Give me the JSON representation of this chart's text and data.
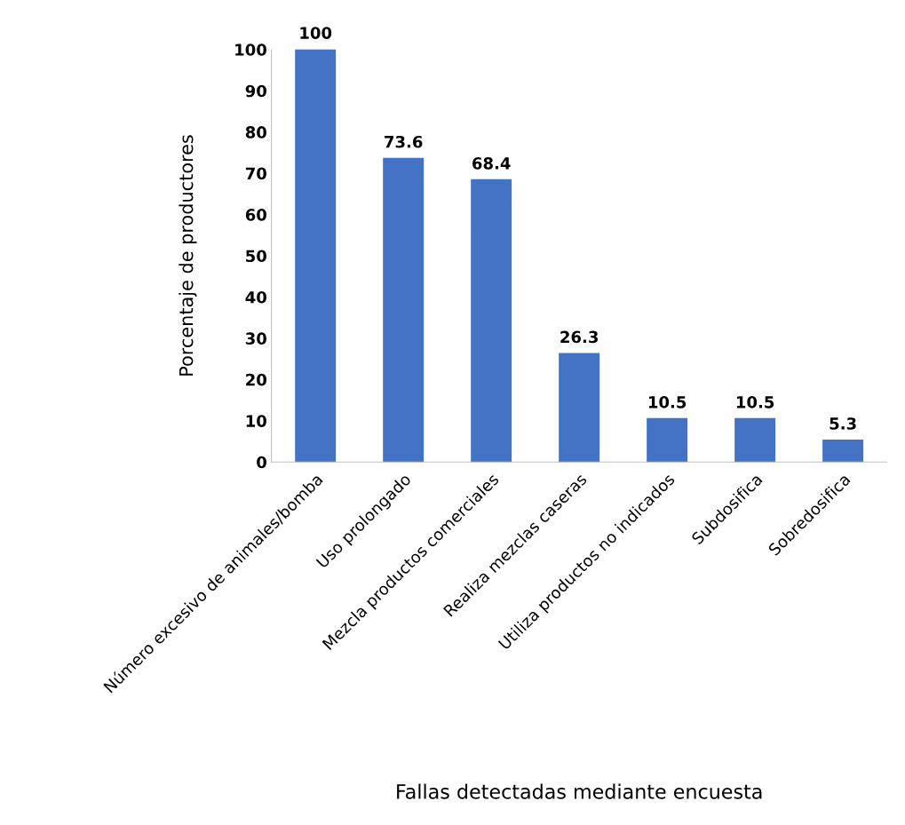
{
  "chart_data": {
    "type": "bar",
    "xlabel": "Fallas detectadas mediante encuesta",
    "ylabel": "Porcentaje de productores",
    "categories": [
      "Número excesivo de animales/bomba",
      "Uso prolongado",
      "Mezcla productos comerciales",
      "Realiza mezclas caseras",
      "Utiliza productos no indicados",
      "Subdosifica",
      "Sobredosifica"
    ],
    "values": [
      100,
      73.6,
      68.4,
      26.3,
      10.5,
      10.5,
      5.3
    ],
    "color": "#4472c4",
    "ylim": [
      0,
      100
    ],
    "yticks": [
      0,
      10,
      20,
      30,
      40,
      50,
      60,
      70,
      80,
      90,
      100
    ],
    "data_labels": true,
    "grid": false
  }
}
